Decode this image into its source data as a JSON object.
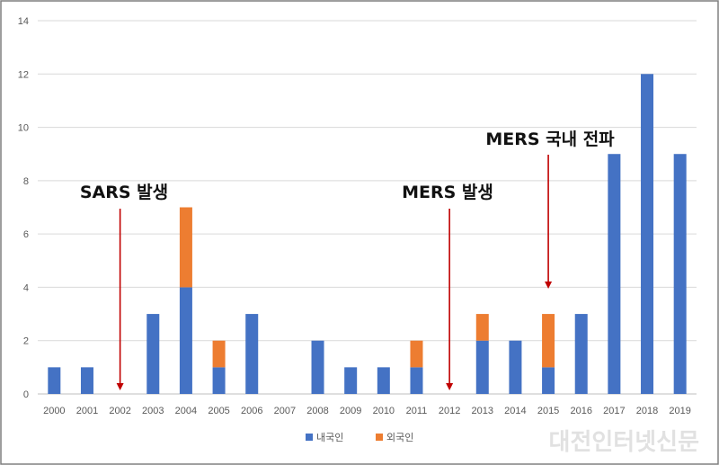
{
  "chart_data": {
    "type": "bar",
    "stacked": true,
    "categories": [
      "2000",
      "2001",
      "2002",
      "2003",
      "2004",
      "2005",
      "2006",
      "2007",
      "2008",
      "2009",
      "2010",
      "2011",
      "2012",
      "2013",
      "2014",
      "2015",
      "2016",
      "2017",
      "2018",
      "2019"
    ],
    "series": [
      {
        "name": "내국인",
        "color": "#4472c4",
        "values": [
          1,
          1,
          0,
          3,
          4,
          1,
          3,
          0,
          2,
          1,
          1,
          1,
          0,
          2,
          2,
          1,
          3,
          9,
          12,
          9
        ]
      },
      {
        "name": "외국인",
        "color": "#ed7d31",
        "values": [
          0,
          0,
          0,
          0,
          3,
          1,
          0,
          0,
          0,
          0,
          0,
          1,
          0,
          1,
          0,
          2,
          0,
          0,
          0,
          0
        ]
      }
    ],
    "ylim": [
      0,
      14
    ],
    "yticks": [
      0,
      2,
      4,
      6,
      8,
      10,
      12,
      14
    ],
    "grid": true,
    "legend": "bottom-center",
    "annotations": [
      {
        "text": "SARS 발생",
        "category": "2002",
        "arrow_color": "#c00000"
      },
      {
        "text": "MERS 발생",
        "category": "2012",
        "arrow_color": "#c00000"
      },
      {
        "text": "MERS 국내 전파",
        "category": "2015",
        "arrow_color": "#c00000"
      }
    ]
  },
  "watermark": "대전인터넷신문"
}
